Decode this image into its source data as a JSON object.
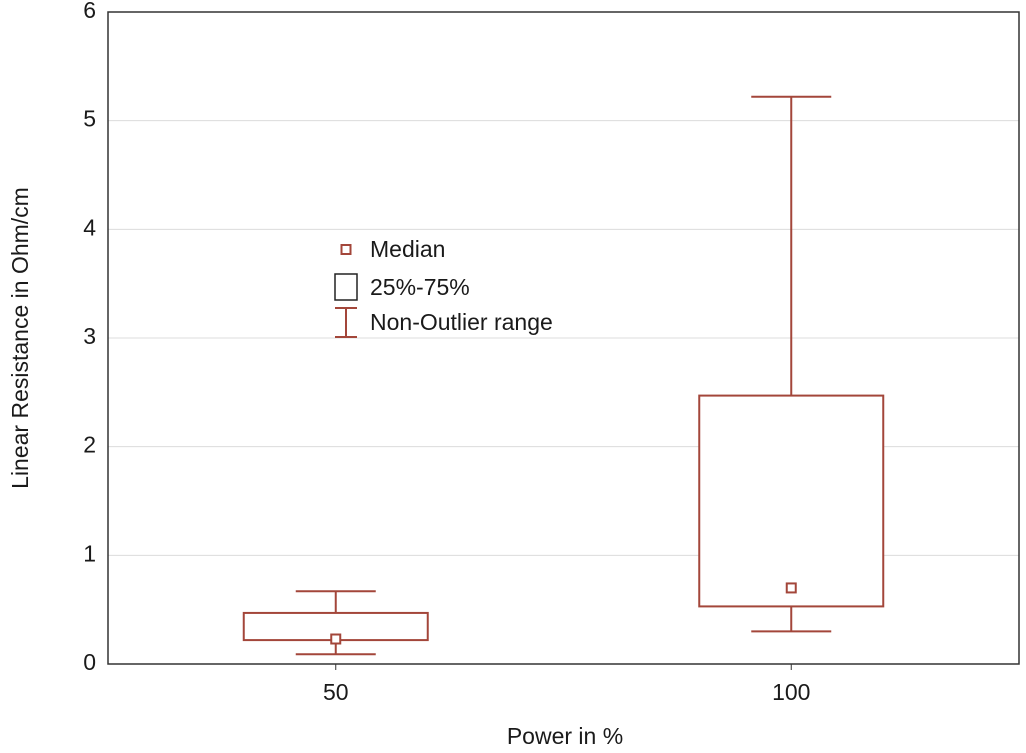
{
  "chart_data": {
    "type": "box",
    "x_label": "Power in %",
    "y_label": "Linear Resistance in Ohm/cm",
    "categories": [
      "50",
      "100"
    ],
    "color": "#a3463a",
    "median": [
      0.23,
      0.7
    ],
    "q1": [
      0.22,
      0.53
    ],
    "q3": [
      0.47,
      2.47
    ],
    "whisker_low": [
      0.09,
      0.3
    ],
    "whisker_high": [
      0.67,
      5.22
    ],
    "legend": [
      "Median",
      "25%-75%",
      "Non-Outlier range"
    ],
    "ylim": [
      0,
      6
    ],
    "yticks": [
      0,
      1,
      2,
      3,
      4,
      5,
      6
    ],
    "grid": true
  }
}
